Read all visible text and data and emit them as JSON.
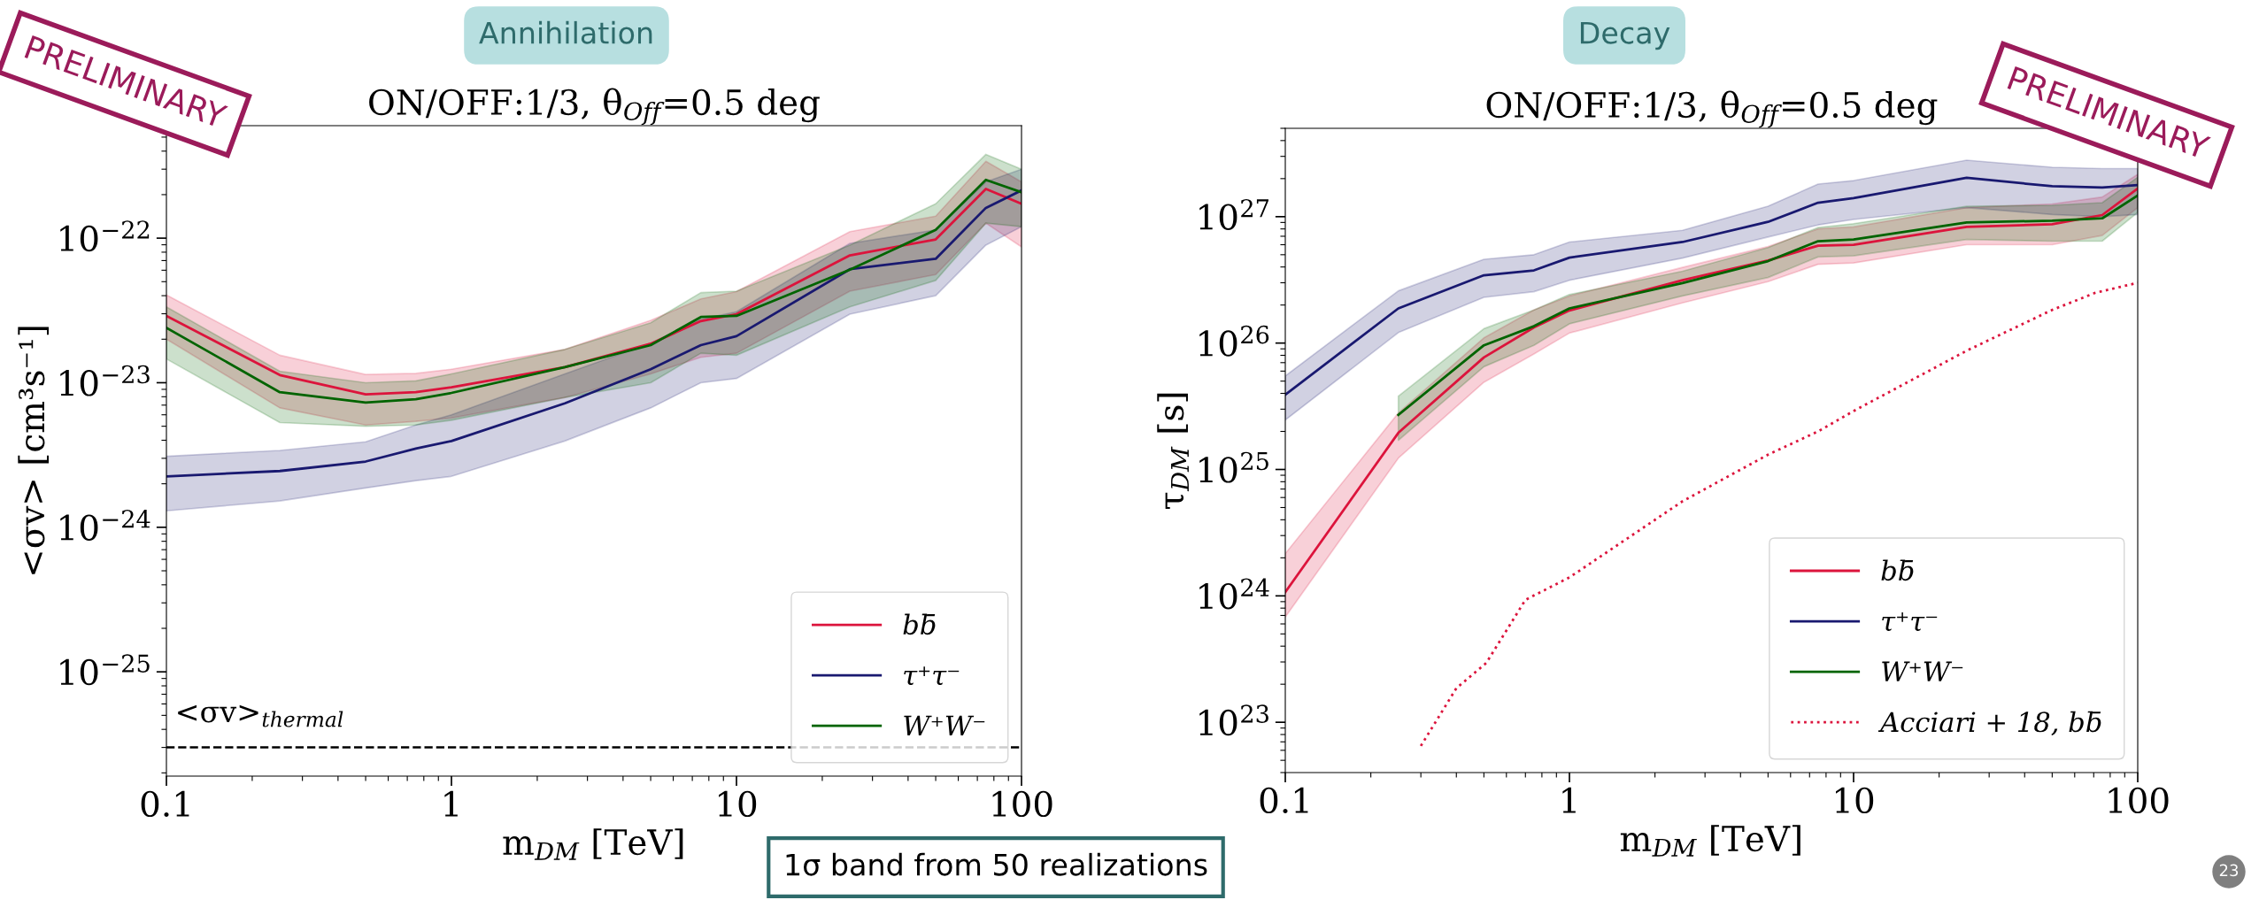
{
  "chart_data": [
    {
      "type": "line",
      "title": "ON/OFF:1/3, θ$_{Off}$=0.5 deg",
      "xlabel": "m$_{DM}$ [TeV]",
      "ylabel": "<σv> [cm³s⁻¹]",
      "log": "xy",
      "xlim": [
        0.1,
        100
      ],
      "xticks": [
        0.1,
        1,
        10,
        100
      ],
      "ylim": [
        1.9e-26,
        6e-22
      ],
      "yticks": [
        {
          "value": 1e-25,
          "label": "10$^{−25}$"
        },
        {
          "value": 1e-24,
          "label": "10$^{−24}$"
        },
        {
          "value": 1e-23,
          "label": "10$^{−23}$"
        },
        {
          "value": 1e-22,
          "label": "10$^{−22}$"
        }
      ],
      "x": [
        0.1,
        0.25,
        0.5,
        0.75,
        1,
        2.5,
        5,
        7.5,
        10,
        25,
        50,
        75,
        100
      ],
      "legend": "bottom right",
      "grid": false,
      "line_style": "solid",
      "series": [
        {
          "name": "bb̄",
          "color": "#dc143c",
          "values": [
            2.9e-23,
            1.13e-23,
            8.3e-24,
            8.6e-24,
            9.3e-24,
            1.28e-23,
            1.86e-23,
            2.67e-23,
            2.98e-23,
            7.6e-23,
            9.8e-23,
            2.19e-22,
            1.73e-22
          ],
          "lower": [
            2e-23,
            6.7e-24,
            5.1e-24,
            5.4e-24,
            5.7e-24,
            7.9e-24,
            1.15e-23,
            1.5e-23,
            1.6e-23,
            4.3e-23,
            5.6e-23,
            1.27e-22,
            8.7e-23
          ],
          "upper": [
            4.05e-23,
            1.55e-23,
            1.14e-23,
            1.16e-23,
            1.24e-23,
            1.7e-23,
            2.7e-23,
            3.8e-23,
            4.27e-23,
            1.11e-22,
            1.42e-22,
            3.4e-22,
            2.45e-22
          ]
        },
        {
          "name": "τ⁺τ⁻",
          "color": "#191970",
          "values": [
            2.25e-24,
            2.45e-24,
            2.85e-24,
            3.5e-24,
            3.95e-24,
            7.2e-24,
            1.24e-23,
            1.82e-23,
            2.1e-23,
            6.1e-23,
            7.2e-23,
            1.62e-22,
            2.14e-22
          ],
          "lower": [
            1.3e-24,
            1.52e-24,
            1.87e-24,
            2.1e-24,
            2.25e-24,
            3.95e-24,
            6.7e-24,
            1e-23,
            1.07e-23,
            2.98e-23,
            4e-23,
            8.96e-23,
            1.2e-22
          ],
          "upper": [
            3.1e-24,
            3.4e-24,
            3.9e-24,
            5.1e-24,
            6e-24,
            1.15e-23,
            1.88e-23,
            2.75e-23,
            3.1e-23,
            9.2e-23,
            1.14e-22,
            2.45e-22,
            3e-22
          ]
        },
        {
          "name": "W⁺W⁻",
          "color": "#006400",
          "values": [
            2.4e-23,
            8.6e-24,
            7.3e-24,
            7.7e-24,
            8.5e-24,
            1.28e-23,
            1.82e-23,
            2.85e-23,
            2.9e-23,
            6.05e-23,
            1.14e-22,
            2.53e-22,
            2.08e-22
          ],
          "lower": [
            1.46e-23,
            5.3e-24,
            5e-24,
            5.1e-24,
            5.5e-24,
            7.9e-24,
            1e-23,
            1.6e-23,
            1.55e-23,
            3.35e-23,
            5.1e-23,
            1.27e-22,
            1.2e-22
          ],
          "upper": [
            3.35e-23,
            1.2e-23,
            1e-23,
            1.03e-23,
            1.15e-23,
            1.7e-23,
            2.6e-23,
            4.2e-23,
            4.3e-23,
            8.96e-23,
            1.73e-22,
            3.8e-22,
            3e-22
          ]
        }
      ],
      "ref_lines": [
        {
          "axis": "y",
          "value": 3e-26,
          "label": "<σv>$_{thermal}$",
          "color": "#000000",
          "line_style": "dashed"
        }
      ],
      "annotations": [
        "Annihilation",
        "PRELIMINARY",
        "1σ band from 50 realizations"
      ]
    },
    {
      "type": "line",
      "title": "ON/OFF:1/3, θ$_{Off}$=0.5 deg",
      "xlabel": "m$_{DM}$ [TeV]",
      "ylabel": "τ$_{DM}$ [s]",
      "log": "xy",
      "xlim": [
        0.1,
        100
      ],
      "xticks": [
        0.1,
        1,
        10,
        100
      ],
      "ylim": [
        4e+22,
        5e+27
      ],
      "yticks": [
        {
          "value": 1e+23,
          "label": "10$^{23}$"
        },
        {
          "value": 1e+24,
          "label": "10$^{24}$"
        },
        {
          "value": 1e+25,
          "label": "10$^{25}$"
        },
        {
          "value": 1e+26,
          "label": "10$^{26}$"
        },
        {
          "value": 1e+27,
          "label": "10$^{27}$"
        }
      ],
      "x": [
        0.1,
        0.25,
        0.5,
        0.75,
        1,
        2.5,
        5,
        7.5,
        10,
        25,
        50,
        75,
        100
      ],
      "legend": "bottom right",
      "grid": false,
      "line_style": "solid",
      "series": [
        {
          "name": "bb̄",
          "color": "#dc143c",
          "values": [
            1.07e+24,
            1.95e+25,
            7.7e+25,
            1.33e+26,
            1.81e+26,
            3.14e+26,
            4.5e+26,
            5.9e+26,
            6e+26,
            8.3e+26,
            8.7e+26,
            1.03e+27,
            1.67e+27
          ],
          "lower": [
            6.8e+23,
            1.23e+25,
            4.9e+25,
            8.2e+25,
            1.2e+26,
            2.08e+26,
            3.06e+26,
            4.2e+26,
            4.3e+26,
            6e+26,
            6e+26,
            7.1e+26,
            1.18e+27
          ],
          "upper": [
            2.16e+24,
            2.8e+25,
            1.1e+26,
            1.83e+26,
            2.36e+26,
            3.97e+26,
            5.8e+26,
            8e+26,
            8.3e+26,
            1.18e+27,
            1.26e+27,
            1.43e+27,
            2.16e+27
          ]
        },
        {
          "name": "τ⁺τ⁻",
          "color": "#191970",
          "values": [
            3.9e+25,
            1.88e+26,
            3.44e+26,
            3.76e+26,
            4.74e+26,
            6.3e+26,
            9.1e+26,
            1.29e+27,
            1.4e+27,
            2.03e+27,
            1.74e+27,
            1.7e+27,
            1.78e+27
          ],
          "lower": [
            2.46e+25,
            1.21e+26,
            2.3e+26,
            2.55e+26,
            3.14e+26,
            4.7e+26,
            6.9e+26,
            8.6e+26,
            9.5e+26,
            1.18e+27,
            1.04e+27,
            1e+27,
            1.04e+27
          ],
          "upper": [
            5.5e+25,
            2.59e+26,
            4.6e+26,
            5e+26,
            6.3e+26,
            7.8e+26,
            1.21e+27,
            1.81e+27,
            1.93e+27,
            2.8e+27,
            2.46e+27,
            2.4e+27,
            2.4e+27
          ]
        },
        {
          "name": "W⁺W⁻",
          "color": "#006400",
          "values": [
            null,
            2.7e+25,
            9.6e+25,
            1.36e+26,
            1.88e+26,
            2.98e+26,
            4.45e+26,
            6.4e+26,
            6.6e+26,
            9e+26,
            9.3e+26,
            9.7e+26,
            1.47e+27
          ],
          "lower": [
            null,
            1.7e+25,
            6.5e+25,
            9.6e+25,
            1.42e+26,
            2.36e+26,
            3.3e+26,
            4.8e+26,
            4.9e+26,
            6.6e+26,
            6.4e+26,
            6.4e+26,
            1.08e+27
          ],
          "upper": [
            null,
            3.8e+25,
            1.3e+26,
            1.83e+26,
            2.42e+26,
            3.7e+26,
            5.7e+26,
            8.2e+26,
            8.8e+26,
            1.21e+27,
            1.23e+27,
            1.29e+27,
            2.05e+27
          ]
        },
        {
          "name": "Acciari + 18, bb̄",
          "color": "#dc143c",
          "line_style": "dotted",
          "x": [
            0.3,
            0.4,
            0.51,
            0.7,
            1,
            2.5,
            5,
            7.5,
            10,
            25,
            50,
            71,
            100
          ],
          "values": [
            6.5e+22,
            1.86e+23,
            2.95e+23,
            9.3e+23,
            1.4e+24,
            5.6e+24,
            1.31e+25,
            2e+25,
            2.9e+25,
            8.7e+25,
            1.83e+26,
            2.5e+26,
            3e+26
          ]
        }
      ],
      "annotations": [
        "Decay",
        "PRELIMINARY",
        "23"
      ]
    }
  ]
}
